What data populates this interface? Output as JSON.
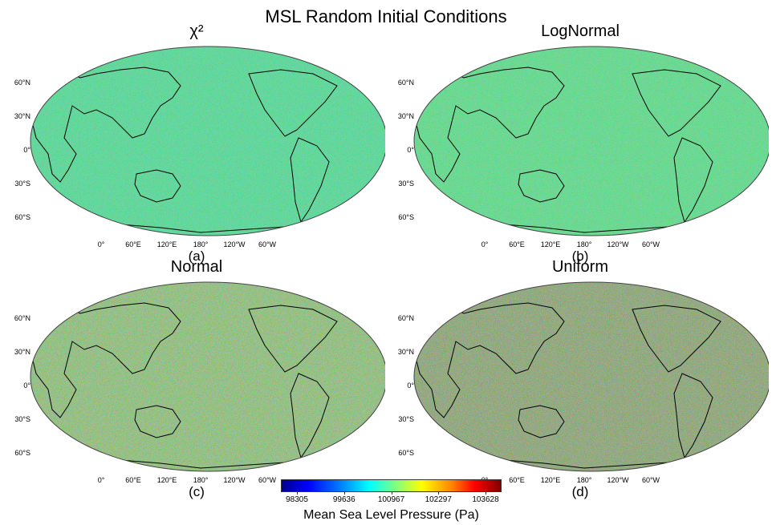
{
  "title": "MSL Random Initial Conditions",
  "panels": [
    {
      "title": "χ²",
      "letter": "(a)",
      "base_color": "#55dd9a"
    },
    {
      "title": "LogNormal",
      "letter": "(b)",
      "base_color": "#5fdf8e"
    },
    {
      "title": "Normal",
      "letter": "(c)",
      "base_color": "#8ec37a"
    },
    {
      "title": "Uniform",
      "letter": "(d)",
      "base_color": "#8aa573"
    }
  ],
  "lat_labels": [
    "60°N",
    "30°N",
    "0°",
    "30°S",
    "60°S"
  ],
  "lon_labels": [
    "0°",
    "60°E",
    "120°E",
    "180°",
    "120°W",
    "60°W"
  ],
  "colorbar": {
    "label": "Mean Sea Level Pressure (Pa)",
    "ticks": [
      "98305",
      "99636",
      "100967",
      "102297",
      "103628"
    ],
    "colormap": "jet"
  }
}
